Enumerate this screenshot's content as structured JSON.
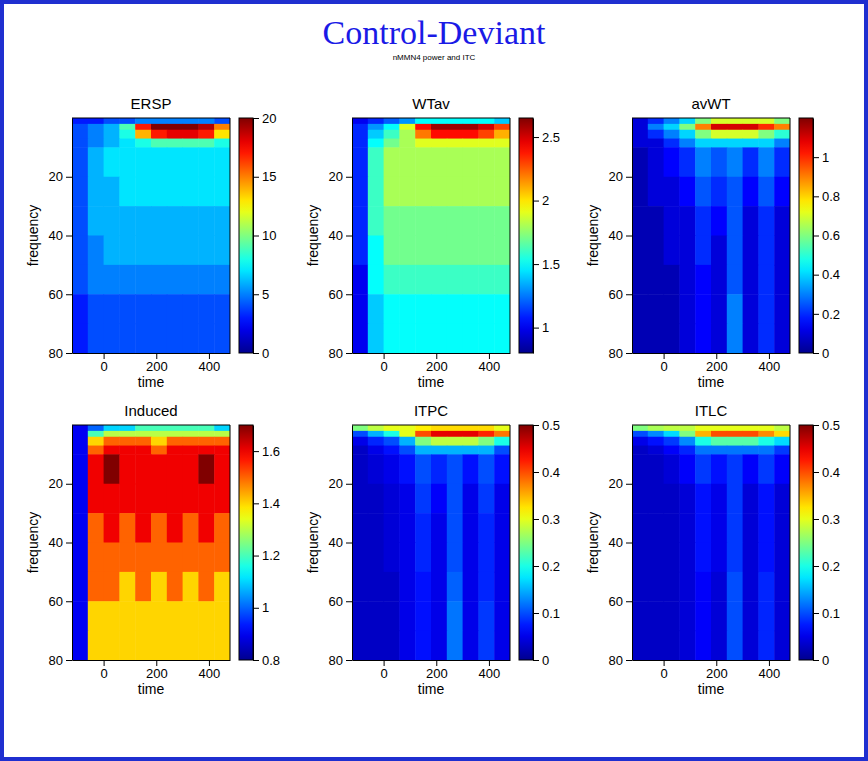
{
  "title": "Control-Deviant",
  "subtitle": "nMMN4 power and ITC",
  "chart_data": [
    {
      "type": "heatmap",
      "title": "ERSP",
      "xlabel": "time",
      "ylabel": "frequency",
      "xlim": [
        -120,
        480
      ],
      "ylim": [
        0,
        80
      ],
      "xticks": [
        0,
        200,
        400
      ],
      "yticks": [
        20,
        40,
        60,
        80
      ],
      "x_edges": [
        -120,
        -60,
        0,
        60,
        120,
        180,
        240,
        300,
        360,
        420,
        480
      ],
      "y_edges": [
        0,
        2,
        4,
        7,
        10,
        20,
        30,
        40,
        50,
        60,
        70,
        80
      ],
      "zlim": [
        0,
        20
      ],
      "zticks": [
        0,
        5,
        10,
        15,
        20
      ],
      "values": [
        [
          3,
          3,
          4,
          4,
          5,
          5,
          5,
          5,
          5,
          4
        ],
        [
          4,
          5,
          6,
          9,
          17,
          20,
          20,
          20,
          19,
          15
        ],
        [
          4,
          5,
          6,
          8,
          14,
          17,
          18,
          18,
          17,
          13
        ],
        [
          4,
          5,
          6,
          7,
          8,
          9,
          9,
          9,
          9,
          8
        ],
        [
          4,
          6,
          7,
          7,
          7,
          7,
          7,
          7,
          7,
          7
        ],
        [
          4,
          6,
          6,
          7,
          7,
          7,
          7,
          7,
          7,
          7
        ],
        [
          4,
          6,
          6,
          6,
          6,
          6,
          6,
          6,
          6,
          6
        ],
        [
          4,
          5,
          6,
          6,
          6,
          6,
          6,
          6,
          6,
          6
        ],
        [
          4,
          5,
          5,
          5,
          5,
          5,
          5,
          5,
          5,
          5
        ],
        [
          3,
          4,
          4,
          4,
          4,
          4,
          4,
          4,
          4,
          4
        ],
        [
          3,
          4,
          4,
          4,
          4,
          4,
          4,
          4,
          4,
          4
        ]
      ]
    },
    {
      "type": "heatmap",
      "title": "WTav",
      "xlabel": "time",
      "ylabel": "frequency",
      "xlim": [
        -120,
        480
      ],
      "ylim": [
        0,
        80
      ],
      "xticks": [
        0,
        200,
        400
      ],
      "yticks": [
        20,
        40,
        60,
        80
      ],
      "x_edges": [
        -120,
        -60,
        0,
        60,
        120,
        180,
        240,
        300,
        360,
        420,
        480
      ],
      "y_edges": [
        0,
        2,
        4,
        7,
        10,
        20,
        30,
        40,
        50,
        60,
        70,
        80
      ],
      "zlim": [
        0.8,
        2.65
      ],
      "zticks": [
        1,
        1.5,
        2,
        2.5
      ],
      "values": [
        [
          1.0,
          1.1,
          1.2,
          1.3,
          1.5,
          1.5,
          1.5,
          1.5,
          1.5,
          1.4
        ],
        [
          1.1,
          1.3,
          1.5,
          1.9,
          2.4,
          2.6,
          2.6,
          2.6,
          2.5,
          2.3
        ],
        [
          1.1,
          1.4,
          1.6,
          1.8,
          2.2,
          2.4,
          2.4,
          2.4,
          2.3,
          2.1
        ],
        [
          1.1,
          1.5,
          1.7,
          1.8,
          1.9,
          1.9,
          1.9,
          1.9,
          1.9,
          1.9
        ],
        [
          1.1,
          1.6,
          1.8,
          1.8,
          1.8,
          1.8,
          1.8,
          1.8,
          1.8,
          1.8
        ],
        [
          1.1,
          1.6,
          1.8,
          1.8,
          1.8,
          1.8,
          1.8,
          1.8,
          1.8,
          1.8
        ],
        [
          1.1,
          1.6,
          1.7,
          1.7,
          1.7,
          1.7,
          1.7,
          1.7,
          1.7,
          1.7
        ],
        [
          1.1,
          1.5,
          1.7,
          1.7,
          1.7,
          1.7,
          1.7,
          1.7,
          1.7,
          1.7
        ],
        [
          1.0,
          1.5,
          1.6,
          1.6,
          1.6,
          1.6,
          1.6,
          1.6,
          1.6,
          1.6
        ],
        [
          1.0,
          1.4,
          1.5,
          1.5,
          1.5,
          1.5,
          1.5,
          1.5,
          1.5,
          1.5
        ],
        [
          1.0,
          1.4,
          1.5,
          1.5,
          1.5,
          1.5,
          1.5,
          1.5,
          1.5,
          1.5
        ]
      ]
    },
    {
      "type": "heatmap",
      "title": "avWT",
      "xlabel": "time",
      "ylabel": "frequency",
      "xlim": [
        -120,
        480
      ],
      "ylim": [
        0,
        80
      ],
      "xticks": [
        0,
        200,
        400
      ],
      "yticks": [
        20,
        40,
        60,
        80
      ],
      "x_edges": [
        -120,
        -60,
        0,
        60,
        120,
        180,
        240,
        300,
        360,
        420,
        480
      ],
      "y_edges": [
        0,
        2,
        4,
        7,
        10,
        20,
        30,
        40,
        50,
        60,
        70,
        80
      ],
      "zlim": [
        0,
        1.2
      ],
      "zticks": [
        0,
        0.2,
        0.4,
        0.6,
        0.8,
        1
      ],
      "values": [
        [
          0.1,
          0.2,
          0.3,
          0.4,
          0.6,
          0.7,
          0.7,
          0.7,
          0.7,
          0.6
        ],
        [
          0.1,
          0.3,
          0.4,
          0.6,
          0.9,
          1.1,
          1.1,
          1.1,
          1.0,
          0.9
        ],
        [
          0.1,
          0.2,
          0.3,
          0.4,
          0.6,
          0.7,
          0.7,
          0.7,
          0.6,
          0.5
        ],
        [
          0.1,
          0.1,
          0.2,
          0.3,
          0.4,
          0.4,
          0.4,
          0.4,
          0.4,
          0.3
        ],
        [
          0.05,
          0.1,
          0.15,
          0.2,
          0.3,
          0.25,
          0.3,
          0.2,
          0.3,
          0.2
        ],
        [
          0.05,
          0.1,
          0.1,
          0.15,
          0.25,
          0.2,
          0.25,
          0.15,
          0.25,
          0.15
        ],
        [
          0.05,
          0.05,
          0.1,
          0.1,
          0.2,
          0.15,
          0.25,
          0.1,
          0.2,
          0.1
        ],
        [
          0.05,
          0.05,
          0.1,
          0.1,
          0.2,
          0.1,
          0.25,
          0.1,
          0.2,
          0.1
        ],
        [
          0.05,
          0.05,
          0.05,
          0.1,
          0.15,
          0.1,
          0.25,
          0.1,
          0.2,
          0.1
        ],
        [
          0.05,
          0.05,
          0.05,
          0.1,
          0.15,
          0.1,
          0.3,
          0.1,
          0.2,
          0.1
        ],
        [
          0.05,
          0.05,
          0.05,
          0.1,
          0.15,
          0.1,
          0.3,
          0.1,
          0.2,
          0.1
        ]
      ]
    },
    {
      "type": "heatmap",
      "title": "Induced",
      "xlabel": "time",
      "ylabel": "frequency",
      "xlim": [
        -120,
        480
      ],
      "ylim": [
        0,
        80
      ],
      "xticks": [
        0,
        200,
        400
      ],
      "yticks": [
        20,
        40,
        60,
        80
      ],
      "x_edges": [
        -120,
        -60,
        0,
        60,
        120,
        180,
        240,
        300,
        360,
        420,
        480
      ],
      "y_edges": [
        0,
        2,
        4,
        7,
        10,
        20,
        30,
        40,
        50,
        60,
        70,
        80
      ],
      "zlim": [
        0.8,
        1.7
      ],
      "zticks": [
        0.8,
        1,
        1.2,
        1.4,
        1.6
      ],
      "values": [
        [
          0.9,
          1.0,
          1.1,
          1.1,
          1.2,
          1.2,
          1.2,
          1.2,
          1.2,
          1.1
        ],
        [
          0.9,
          1.2,
          1.3,
          1.3,
          1.3,
          1.3,
          1.3,
          1.3,
          1.3,
          1.3
        ],
        [
          0.9,
          1.4,
          1.5,
          1.5,
          1.5,
          1.4,
          1.5,
          1.5,
          1.5,
          1.5
        ],
        [
          0.9,
          1.5,
          1.6,
          1.6,
          1.6,
          1.5,
          1.6,
          1.6,
          1.6,
          1.6
        ],
        [
          0.9,
          1.6,
          1.7,
          1.6,
          1.6,
          1.6,
          1.6,
          1.6,
          1.7,
          1.6
        ],
        [
          0.9,
          1.6,
          1.6,
          1.6,
          1.6,
          1.6,
          1.6,
          1.6,
          1.6,
          1.6
        ],
        [
          0.9,
          1.5,
          1.6,
          1.5,
          1.6,
          1.5,
          1.6,
          1.5,
          1.6,
          1.5
        ],
        [
          0.9,
          1.5,
          1.5,
          1.5,
          1.5,
          1.5,
          1.5,
          1.5,
          1.5,
          1.5
        ],
        [
          0.9,
          1.5,
          1.5,
          1.4,
          1.5,
          1.4,
          1.5,
          1.4,
          1.5,
          1.4
        ],
        [
          0.9,
          1.4,
          1.4,
          1.4,
          1.4,
          1.4,
          1.4,
          1.4,
          1.4,
          1.4
        ],
        [
          0.9,
          1.4,
          1.4,
          1.4,
          1.4,
          1.4,
          1.4,
          1.4,
          1.4,
          1.4
        ]
      ]
    },
    {
      "type": "heatmap",
      "title": "ITPC",
      "xlabel": "time",
      "ylabel": "frequency",
      "xlim": [
        -120,
        480
      ],
      "ylim": [
        0,
        80
      ],
      "xticks": [
        0,
        200,
        400
      ],
      "yticks": [
        20,
        40,
        60,
        80
      ],
      "x_edges": [
        -120,
        -60,
        0,
        60,
        120,
        180,
        240,
        300,
        360,
        420,
        480
      ],
      "y_edges": [
        0,
        2,
        4,
        7,
        10,
        20,
        30,
        40,
        50,
        60,
        70,
        80
      ],
      "zlim": [
        0,
        0.5
      ],
      "zticks": [
        0,
        0.1,
        0.2,
        0.3,
        0.4,
        0.5
      ],
      "values": [
        [
          0.25,
          0.28,
          0.3,
          0.3,
          0.32,
          0.33,
          0.33,
          0.33,
          0.33,
          0.3
        ],
        [
          0.1,
          0.15,
          0.2,
          0.3,
          0.4,
          0.45,
          0.45,
          0.45,
          0.42,
          0.38
        ],
        [
          0.05,
          0.08,
          0.1,
          0.15,
          0.25,
          0.28,
          0.28,
          0.28,
          0.25,
          0.2
        ],
        [
          0.03,
          0.05,
          0.07,
          0.1,
          0.15,
          0.15,
          0.15,
          0.15,
          0.15,
          0.1
        ],
        [
          0.03,
          0.04,
          0.05,
          0.07,
          0.1,
          0.08,
          0.1,
          0.07,
          0.1,
          0.07
        ],
        [
          0.03,
          0.03,
          0.04,
          0.05,
          0.09,
          0.06,
          0.1,
          0.05,
          0.09,
          0.05
        ],
        [
          0.03,
          0.03,
          0.04,
          0.05,
          0.08,
          0.05,
          0.1,
          0.05,
          0.08,
          0.05
        ],
        [
          0.03,
          0.03,
          0.04,
          0.05,
          0.08,
          0.05,
          0.1,
          0.05,
          0.08,
          0.05
        ],
        [
          0.03,
          0.03,
          0.03,
          0.05,
          0.07,
          0.05,
          0.11,
          0.05,
          0.08,
          0.05
        ],
        [
          0.03,
          0.03,
          0.03,
          0.05,
          0.07,
          0.05,
          0.12,
          0.05,
          0.09,
          0.05
        ],
        [
          0.03,
          0.03,
          0.03,
          0.05,
          0.07,
          0.05,
          0.12,
          0.05,
          0.09,
          0.05
        ]
      ]
    },
    {
      "type": "heatmap",
      "title": "ITLC",
      "xlabel": "time",
      "ylabel": "frequency",
      "xlim": [
        -120,
        480
      ],
      "ylim": [
        0,
        80
      ],
      "xticks": [
        0,
        200,
        400
      ],
      "yticks": [
        20,
        40,
        60,
        80
      ],
      "x_edges": [
        -120,
        -60,
        0,
        60,
        120,
        180,
        240,
        300,
        360,
        420,
        480
      ],
      "y_edges": [
        0,
        2,
        4,
        7,
        10,
        20,
        30,
        40,
        50,
        60,
        70,
        80
      ],
      "zlim": [
        0,
        0.5
      ],
      "zticks": [
        0,
        0.1,
        0.2,
        0.3,
        0.4,
        0.5
      ],
      "values": [
        [
          0.25,
          0.27,
          0.28,
          0.28,
          0.3,
          0.3,
          0.3,
          0.3,
          0.3,
          0.28
        ],
        [
          0.1,
          0.13,
          0.17,
          0.25,
          0.35,
          0.4,
          0.4,
          0.4,
          0.37,
          0.33
        ],
        [
          0.05,
          0.07,
          0.09,
          0.13,
          0.2,
          0.23,
          0.23,
          0.23,
          0.2,
          0.17
        ],
        [
          0.03,
          0.04,
          0.06,
          0.08,
          0.12,
          0.12,
          0.12,
          0.12,
          0.12,
          0.09
        ],
        [
          0.03,
          0.03,
          0.04,
          0.06,
          0.09,
          0.07,
          0.09,
          0.06,
          0.09,
          0.06
        ],
        [
          0.03,
          0.03,
          0.03,
          0.04,
          0.07,
          0.05,
          0.09,
          0.04,
          0.07,
          0.04
        ],
        [
          0.03,
          0.03,
          0.03,
          0.04,
          0.07,
          0.05,
          0.09,
          0.04,
          0.07,
          0.04
        ],
        [
          0.03,
          0.03,
          0.03,
          0.04,
          0.07,
          0.05,
          0.09,
          0.04,
          0.07,
          0.04
        ],
        [
          0.03,
          0.03,
          0.03,
          0.04,
          0.06,
          0.04,
          0.1,
          0.04,
          0.08,
          0.04
        ],
        [
          0.03,
          0.03,
          0.03,
          0.04,
          0.06,
          0.04,
          0.1,
          0.04,
          0.08,
          0.04
        ],
        [
          0.03,
          0.03,
          0.03,
          0.04,
          0.06,
          0.04,
          0.1,
          0.04,
          0.08,
          0.04
        ]
      ]
    }
  ]
}
